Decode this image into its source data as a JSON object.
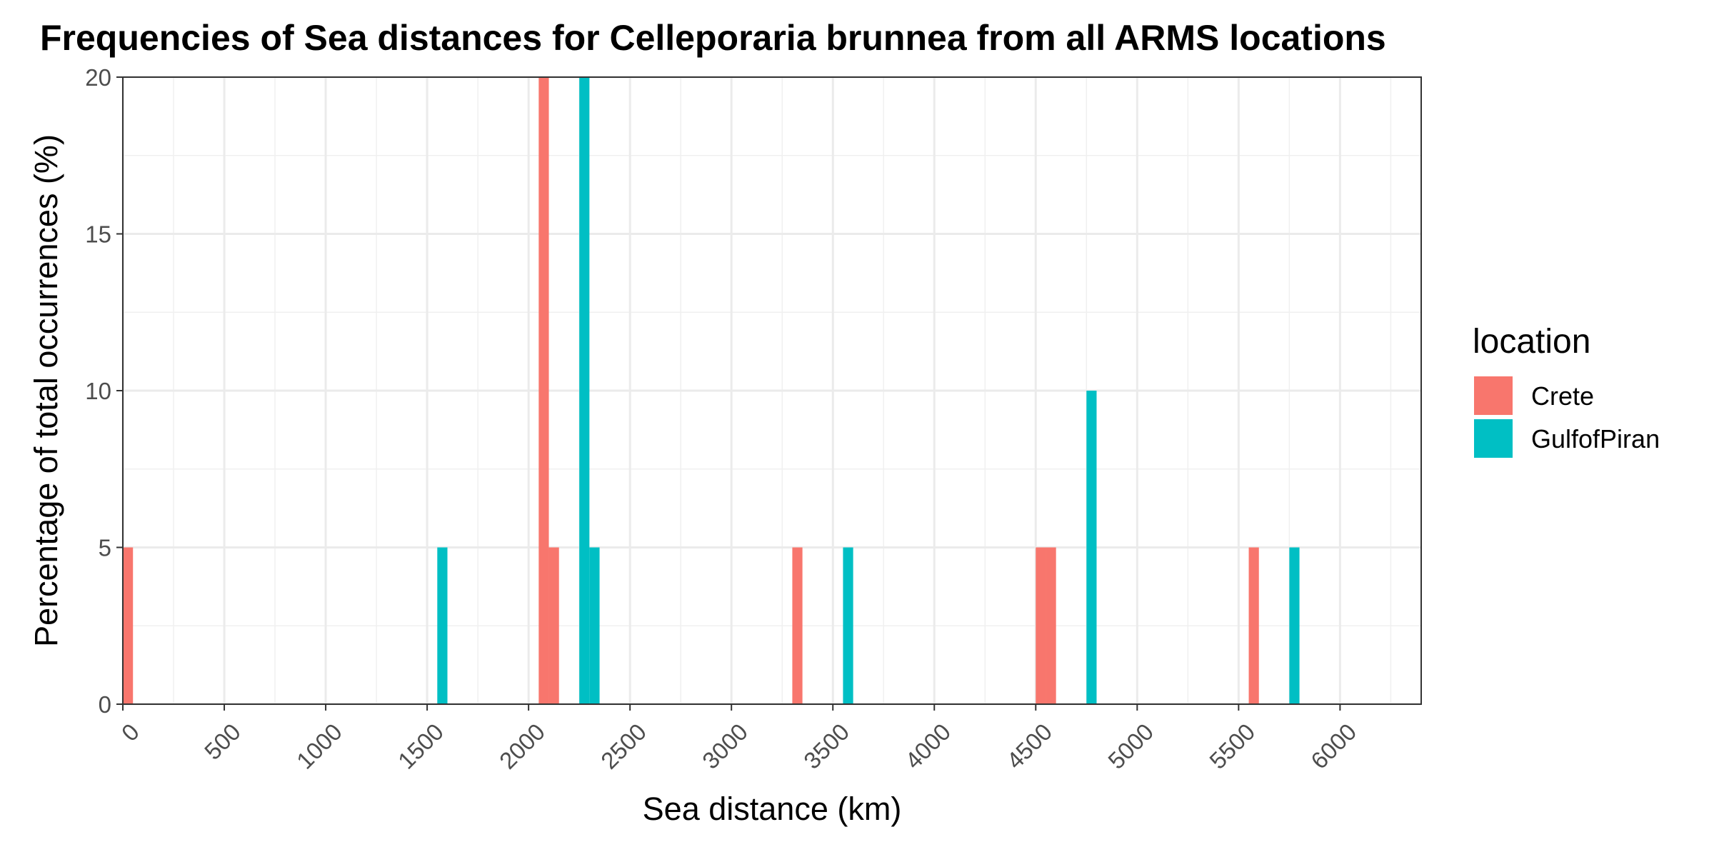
{
  "chart_data": {
    "type": "bar",
    "title": "Frequencies of Sea distances for Celleporaria brunnea from all ARMS locations",
    "xlabel": "Sea distance (km)",
    "ylabel": "Percentage of total occurrences (%)",
    "xlim": [
      0,
      6400
    ],
    "ylim": [
      0,
      20
    ],
    "x_ticks": [
      "0",
      "500",
      "1000",
      "1500",
      "2000",
      "2500",
      "3000",
      "3500",
      "4000",
      "4500",
      "5000",
      "5500",
      "6000"
    ],
    "y_ticks": [
      "0",
      "5",
      "10",
      "15",
      "20"
    ],
    "bin_width": 50,
    "grid": true,
    "legend": {
      "title": "location",
      "position": "right",
      "entries": [
        "Crete",
        "GulfofPiran"
      ]
    },
    "series": [
      {
        "name": "Crete",
        "color": "#F8766D",
        "bins": [
          {
            "x": 0,
            "value": 5
          },
          {
            "x": 2050,
            "value": 20
          },
          {
            "x": 2100,
            "value": 5
          },
          {
            "x": 3300,
            "value": 5
          },
          {
            "x": 4500,
            "value": 5
          },
          {
            "x": 4550,
            "value": 5
          },
          {
            "x": 5550,
            "value": 5
          }
        ]
      },
      {
        "name": "GulfofPiran",
        "color": "#00BFC4",
        "bins": [
          {
            "x": 1550,
            "value": 5
          },
          {
            "x": 2250,
            "value": 20
          },
          {
            "x": 2300,
            "value": 5
          },
          {
            "x": 3550,
            "value": 5
          },
          {
            "x": 4750,
            "value": 10
          },
          {
            "x": 5750,
            "value": 5
          }
        ]
      }
    ]
  }
}
